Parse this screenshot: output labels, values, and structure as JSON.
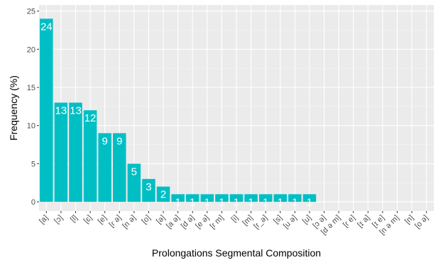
{
  "colors": {
    "panel": "#ebebeb",
    "grid_major": "#ffffff",
    "grid_minor": "#f5f5f5",
    "bar": "#00bfc4",
    "bar_label": "#ffffff",
    "tick_text": "#4d4d4d",
    "tick_mark": "#333333"
  },
  "chart_data": {
    "type": "bar",
    "title": "",
    "xlabel": "Prolongations Segmental Composition",
    "ylabel": "Frequency (%)",
    "ylim": [
      0,
      25
    ],
    "yticks": [
      0,
      5,
      10,
      15,
      20,
      25
    ],
    "grid": true,
    "legend": "none",
    "categories": [
      "[a]",
      "[ɔ]",
      "[l]",
      "[ɛ]",
      "[e]",
      "[ɾ ə]",
      "[n ə]",
      "[o]",
      "[ə]",
      "[a ə]",
      "[d ə]",
      "[e ə]",
      "[ɾ m]",
      "[i]",
      "[m]",
      "[r_ə]",
      "[s]",
      "[u ə]",
      "[u]",
      "[ɔ ə]",
      "[d ə m]",
      "[ɾ e]",
      "[ɪ a]",
      "[ɪ e]",
      "[n ə m]",
      "[n]",
      "[o ə]"
    ],
    "values": [
      24,
      13,
      13,
      12,
      9,
      9,
      5,
      3,
      2,
      1,
      1,
      1,
      1,
      1,
      1,
      1,
      1,
      1,
      1,
      0,
      0,
      0,
      0,
      0,
      0,
      0,
      0
    ],
    "data_labels": [
      "24",
      "13",
      "13",
      "12",
      "9",
      "9",
      "5",
      "3",
      "2",
      "1",
      "1",
      "1",
      "1",
      "1",
      "1",
      "1",
      "1",
      "1",
      "1",
      "",
      "",
      "",
      "",
      "",
      "",
      "",
      ""
    ]
  }
}
